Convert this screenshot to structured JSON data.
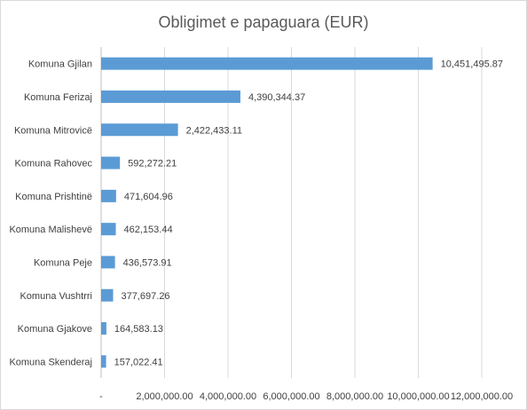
{
  "chart_data": {
    "type": "bar",
    "orientation": "horizontal",
    "title": "Obligimet e papaguara (EUR)",
    "xlabel": "",
    "ylabel": "",
    "categories": [
      "Komuna Gjilan",
      "Komuna Ferizaj",
      "Komuna Mitrovicë",
      "Komuna Rahovec",
      "Komuna Prishtinë",
      "Komuna Malishevë",
      "Komuna Peje",
      "Komuna Vushtrri",
      "Komuna Gjakove",
      "Komuna Skenderaj"
    ],
    "values": [
      10451495.87,
      4390344.37,
      2422433.11,
      592272.21,
      471604.96,
      462153.44,
      436573.91,
      377697.26,
      164583.13,
      157022.41
    ],
    "value_labels": [
      "10,451,495.87",
      "4,390,344.37",
      "2,422,433.11",
      "592,272.21",
      "471,604.96",
      "462,153.44",
      "436,573.91",
      "377,697.26",
      "164,583.13",
      "157,022.41"
    ],
    "xlim": [
      0,
      12000000
    ],
    "ticks": [
      0,
      2000000,
      4000000,
      6000000,
      8000000,
      10000000,
      12000000
    ],
    "tick_labels": [
      "-",
      "2,000,000.00",
      "4,000,000.00",
      "6,000,000.00",
      "8,000,000.00",
      "10,000,000.00",
      "12,000,000.00"
    ],
    "grid": true,
    "legend": "none",
    "bar_color": "#5b9bd5",
    "grid_color": "#d9d9d9",
    "text_color": "#404040",
    "title_color": "#595959"
  }
}
